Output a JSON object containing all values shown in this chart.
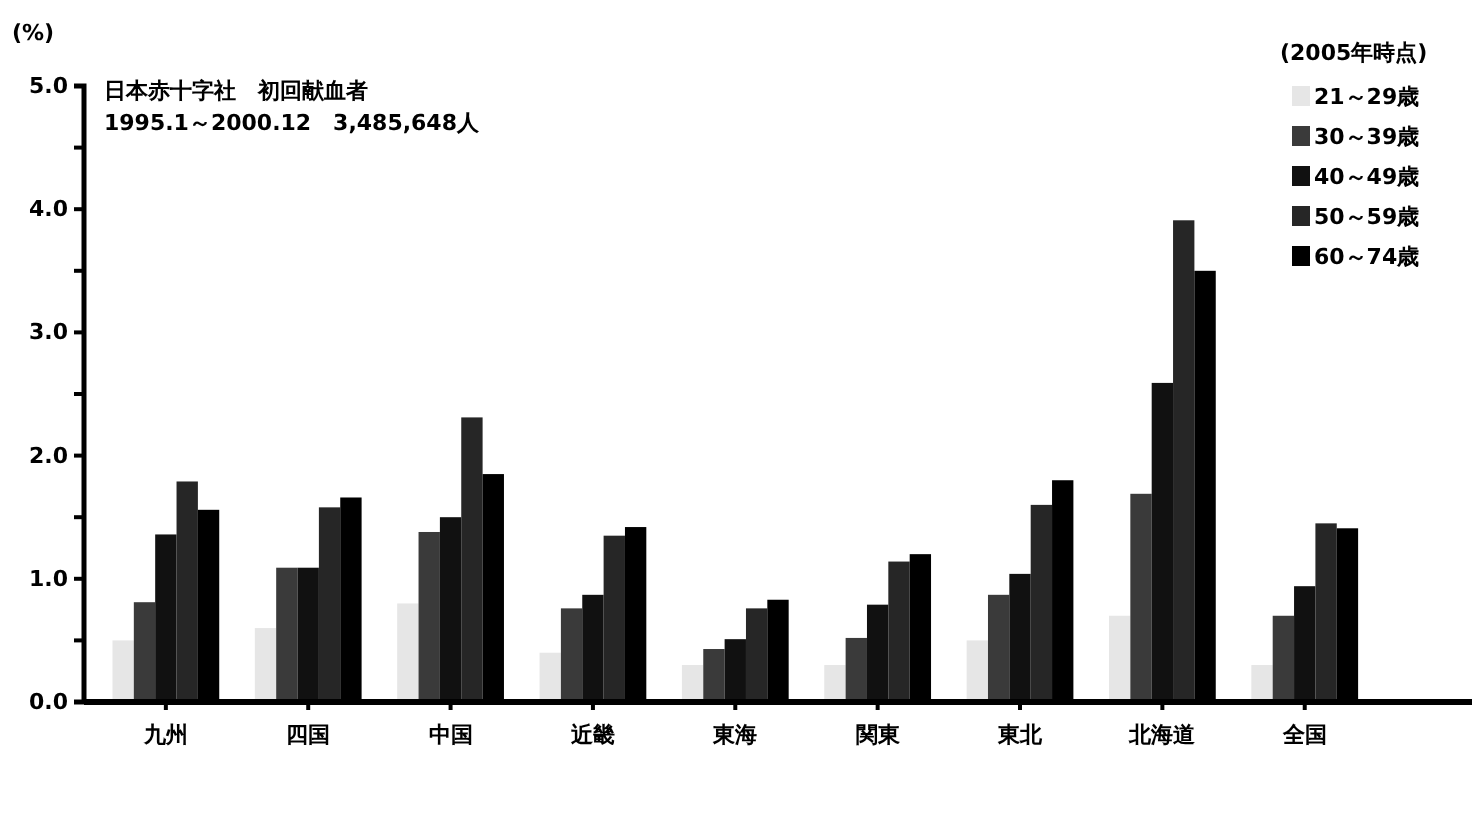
{
  "chart_data": {
    "type": "bar",
    "title": "日本赤十字社　初回献血者",
    "subtitle": "1995.1～2000.12　3,485,648人",
    "ylabel": "(%)",
    "legend_title": "(2005年時点)",
    "categories": [
      "九州",
      "四国",
      "中国",
      "近畿",
      "東海",
      "関東",
      "東北",
      "北海道",
      "全国"
    ],
    "series": [
      {
        "name": "21～29歳",
        "color": "#e6e6e6",
        "values": [
          0.5,
          0.6,
          0.8,
          0.4,
          0.3,
          0.3,
          0.5,
          0.7,
          0.3
        ]
      },
      {
        "name": "30～39歳",
        "color": "#3a3a3a",
        "values": [
          0.81,
          1.09,
          1.38,
          0.76,
          0.43,
          0.52,
          0.87,
          1.69,
          0.7
        ]
      },
      {
        "name": "40～49歳",
        "color": "#111111",
        "values": [
          1.36,
          1.09,
          1.5,
          0.87,
          0.51,
          0.79,
          1.04,
          2.59,
          0.94
        ]
      },
      {
        "name": "50～59歳",
        "color": "#262626",
        "values": [
          1.79,
          1.58,
          2.31,
          1.35,
          0.76,
          1.14,
          1.6,
          3.91,
          1.45
        ]
      },
      {
        "name": "60～74歳",
        "color": "#000000",
        "values": [
          1.56,
          1.66,
          1.85,
          1.42,
          0.83,
          1.2,
          1.8,
          3.5,
          1.41
        ]
      }
    ],
    "ylim": [
      0,
      5
    ],
    "yticks": [
      {
        "value": 0,
        "label": "0.0"
      },
      {
        "value": 0.5,
        "label": null
      },
      {
        "value": 1,
        "label": "1.0"
      },
      {
        "value": 1.5,
        "label": null
      },
      {
        "value": 2,
        "label": "2.0"
      },
      {
        "value": 2.5,
        "label": null
      },
      {
        "value": 3,
        "label": "3.0"
      },
      {
        "value": 3.5,
        "label": null
      },
      {
        "value": 4,
        "label": "4.0"
      },
      {
        "value": 4.5,
        "label": null
      },
      {
        "value": 5,
        "label": "5.0"
      }
    ],
    "grid": false,
    "legend": "top right"
  }
}
